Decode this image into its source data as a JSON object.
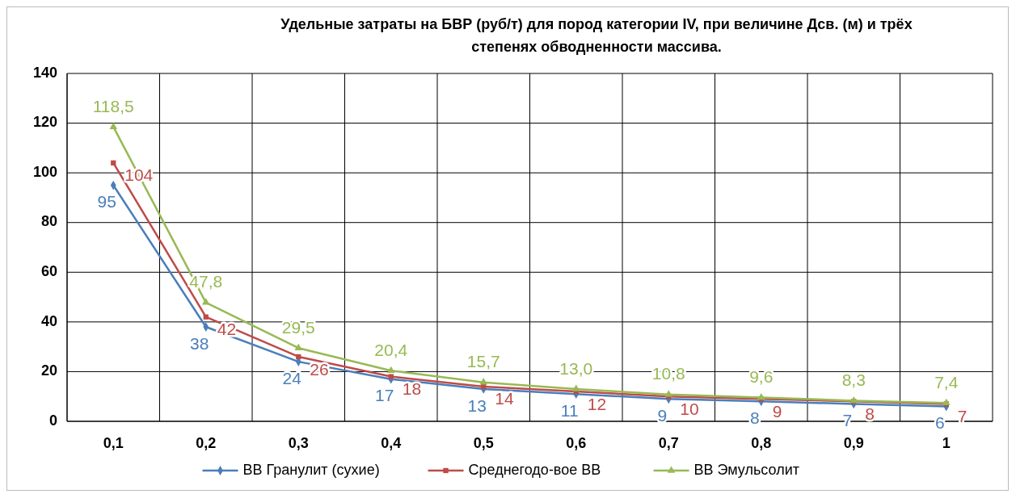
{
  "chart_data": {
    "type": "line",
    "title": "Удельные затраты на БВР (руб/т) для пород категории IV, при величине Дсв. (м) и трёх степенях обводненности массива.",
    "categories": [
      "0,1",
      "0,2",
      "0,3",
      "0,4",
      "0,5",
      "0,6",
      "0,7",
      "0,8",
      "0,9",
      "1"
    ],
    "ylim": [
      0,
      140
    ],
    "yticks": [
      0,
      20,
      40,
      60,
      80,
      100,
      120,
      140
    ],
    "grid": true,
    "legend": "bottom",
    "series": [
      {
        "name": "ВВ Гранулит (сухие)",
        "color": "#4a7ebb",
        "marker": "diamond",
        "values": [
          95,
          38,
          24,
          17,
          13,
          11,
          9,
          8,
          7,
          6
        ],
        "value_labels": [
          "95",
          "38",
          "24",
          "17",
          "13",
          "11",
          "9",
          "8",
          "7",
          "6"
        ]
      },
      {
        "name": "Среднегодо-вое ВВ",
        "color": "#be4b48",
        "marker": "square",
        "values": [
          104,
          42,
          26,
          18,
          14,
          12,
          10,
          9,
          8,
          7
        ],
        "value_labels": [
          "104",
          "42",
          "26",
          "18",
          "14",
          "12",
          "10",
          "9",
          "8",
          "7"
        ]
      },
      {
        "name": "ВВ Эмульсолит",
        "color": "#98b954",
        "marker": "triangle",
        "values": [
          118.5,
          47.8,
          29.5,
          20.4,
          15.7,
          13.0,
          10.8,
          9.6,
          8.3,
          7.4
        ],
        "value_labels": [
          "118,5",
          "47,8",
          "29,5",
          "20,4",
          "15,7",
          "13,0",
          "10,8",
          "9,6",
          "8,3",
          "7,4"
        ]
      }
    ]
  }
}
